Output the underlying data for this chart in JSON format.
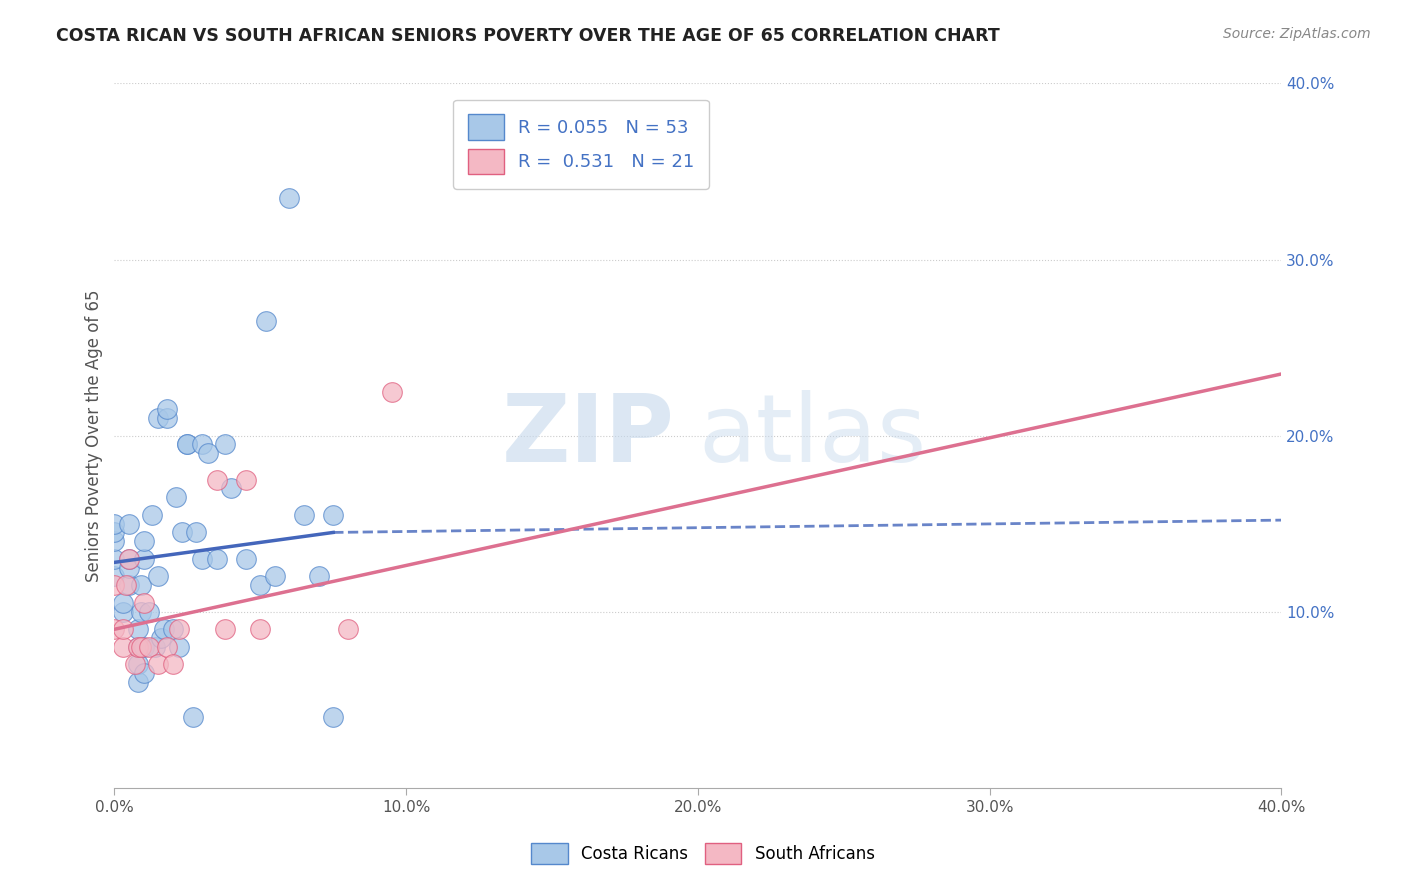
{
  "title": "COSTA RICAN VS SOUTH AFRICAN SENIORS POVERTY OVER THE AGE OF 65 CORRELATION CHART",
  "source": "Source: ZipAtlas.com",
  "ylabel": "Seniors Poverty Over the Age of 65",
  "xlim": [
    0.0,
    0.4
  ],
  "ylim": [
    0.0,
    0.4
  ],
  "x_ticks": [
    0.0,
    0.1,
    0.2,
    0.3,
    0.4
  ],
  "y_ticks_right": [
    0.1,
    0.2,
    0.3,
    0.4
  ],
  "x_tick_labels": [
    "0.0%",
    "10.0%",
    "20.0%",
    "30.0%",
    "40.0%"
  ],
  "y_tick_labels_right": [
    "10.0%",
    "20.0%",
    "30.0%",
    "40.0%"
  ],
  "blue_color": "#a8c8e8",
  "pink_color": "#f4b8c4",
  "blue_edge_color": "#5588cc",
  "pink_edge_color": "#e06080",
  "blue_line_color": "#4466bb",
  "pink_line_color": "#dd7090",
  "watermark_zip": "ZIP",
  "watermark_atlas": "atlas",
  "costa_rica_x": [
    0.0,
    0.0,
    0.0,
    0.0,
    0.0,
    0.003,
    0.003,
    0.005,
    0.005,
    0.005,
    0.005,
    0.008,
    0.008,
    0.008,
    0.008,
    0.009,
    0.009,
    0.01,
    0.01,
    0.01,
    0.01,
    0.012,
    0.013,
    0.014,
    0.015,
    0.015,
    0.016,
    0.017,
    0.018,
    0.018,
    0.02,
    0.021,
    0.022,
    0.023,
    0.025,
    0.025,
    0.027,
    0.028,
    0.03,
    0.03,
    0.032,
    0.035,
    0.038,
    0.04,
    0.045,
    0.05,
    0.052,
    0.055,
    0.06,
    0.065,
    0.07,
    0.075,
    0.075
  ],
  "costa_rica_y": [
    0.12,
    0.13,
    0.14,
    0.145,
    0.15,
    0.1,
    0.105,
    0.115,
    0.125,
    0.13,
    0.15,
    0.06,
    0.07,
    0.08,
    0.09,
    0.1,
    0.115,
    0.13,
    0.14,
    0.065,
    0.08,
    0.1,
    0.155,
    0.08,
    0.12,
    0.21,
    0.085,
    0.09,
    0.21,
    0.215,
    0.09,
    0.165,
    0.08,
    0.145,
    0.195,
    0.195,
    0.04,
    0.145,
    0.13,
    0.195,
    0.19,
    0.13,
    0.195,
    0.17,
    0.13,
    0.115,
    0.265,
    0.12,
    0.335,
    0.155,
    0.12,
    0.155,
    0.04
  ],
  "south_africa_x": [
    0.0,
    0.0,
    0.003,
    0.003,
    0.004,
    0.005,
    0.007,
    0.008,
    0.009,
    0.01,
    0.012,
    0.015,
    0.018,
    0.02,
    0.022,
    0.035,
    0.038,
    0.045,
    0.05,
    0.08,
    0.095
  ],
  "south_africa_y": [
    0.09,
    0.115,
    0.08,
    0.09,
    0.115,
    0.13,
    0.07,
    0.08,
    0.08,
    0.105,
    0.08,
    0.07,
    0.08,
    0.07,
    0.09,
    0.175,
    0.09,
    0.175,
    0.09,
    0.09,
    0.225
  ],
  "blue_trend_x1": 0.0,
  "blue_trend_y1": 0.128,
  "blue_trend_x2": 0.075,
  "blue_trend_y2": 0.145,
  "blue_trend_x2_dashed": 0.4,
  "blue_trend_y2_dashed": 0.152,
  "pink_trend_x1": 0.0,
  "pink_trend_y1": 0.09,
  "pink_trend_x2": 0.4,
  "pink_trend_y2": 0.235
}
